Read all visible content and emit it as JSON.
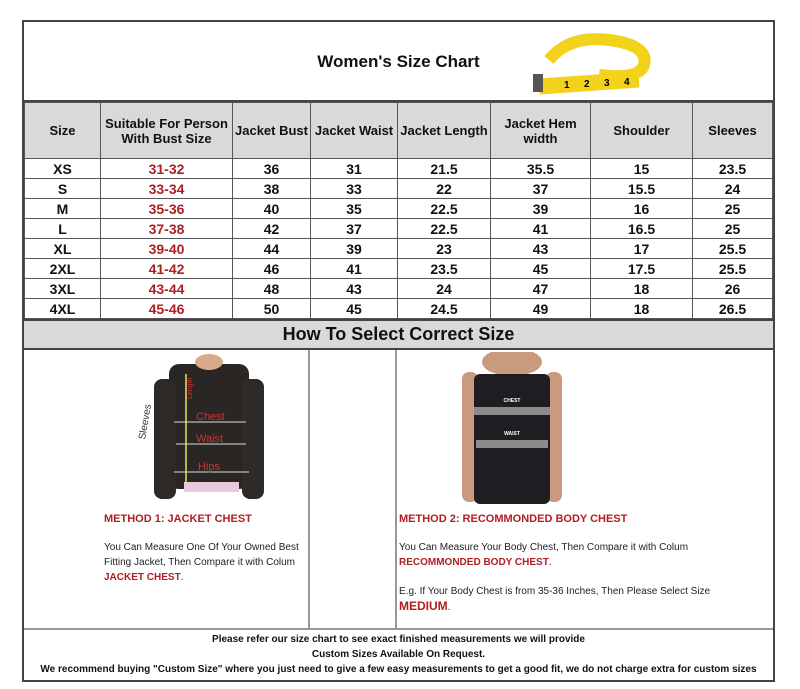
{
  "title": "Women's Size Chart",
  "headers": [
    "Size",
    "Suitable For Person With Bust Size",
    "Jacket Bust",
    "Jacket Waist",
    "Jacket Length",
    "Jacket Hem width",
    "Shoulder",
    "Sleeves"
  ],
  "rows": [
    [
      "XS",
      "31-32",
      "36",
      "31",
      "21.5",
      "35.5",
      "15",
      "23.5"
    ],
    [
      "S",
      "33-34",
      "38",
      "33",
      "22",
      "37",
      "15.5",
      "24"
    ],
    [
      "M",
      "35-36",
      "40",
      "35",
      "22.5",
      "39",
      "16",
      "25"
    ],
    [
      "L",
      "37-38",
      "42",
      "37",
      "22.5",
      "41",
      "16.5",
      "25"
    ],
    [
      "XL",
      "39-40",
      "44",
      "39",
      "23",
      "43",
      "17",
      "25.5"
    ],
    [
      "2XL",
      "41-42",
      "46",
      "41",
      "23.5",
      "45",
      "17.5",
      "25.5"
    ],
    [
      "3XL",
      "43-44",
      "48",
      "43",
      "24",
      "47",
      "18",
      "26"
    ],
    [
      "4XL",
      "45-46",
      "50",
      "45",
      "24.5",
      "49",
      "18",
      "26.5"
    ]
  ],
  "howto": "How To Select Correct Size",
  "method1": {
    "heading": "METHOD 1: JACKET CHEST",
    "text": "You Can Measure One Of Your Owned Best Fitting Jacket, Then Compare it with Colum ",
    "highlight": "JACKET CHEST",
    "end": ".",
    "photo_labels": [
      "Sleeves",
      "Length",
      "Chest",
      "Waist",
      "Hips"
    ]
  },
  "method2": {
    "heading": "METHOD 2: RECOMMONDED BODY CHEST",
    "text": "You Can Measure Your Body Chest, Then Compare it with Colum ",
    "highlight": "RECOMMONDED BODY CHEST",
    "end": ".",
    "example": "E.g. If Your Body Chest is from 35-36 Inches, Then Please Select Size ",
    "example_highlight": "MEDIUM",
    "example_end": ".",
    "photo_labels": [
      "CHEST",
      "WAIST"
    ]
  },
  "footer": [
    "Please refer our size chart to see exact finished measurements we will provide",
    "Custom Sizes Available On Request.",
    "We recommend buying \"Custom Size\" where you just need to give a few easy measurements to get a good fit, we do not charge extra for custom sizes"
  ],
  "tape_numbers": [
    "1",
    "2",
    "3",
    "4"
  ],
  "colors": {
    "accent_red": "#b01e23",
    "header_gray": "#d9d9d9",
    "tape_yellow": "#f2d21b"
  }
}
